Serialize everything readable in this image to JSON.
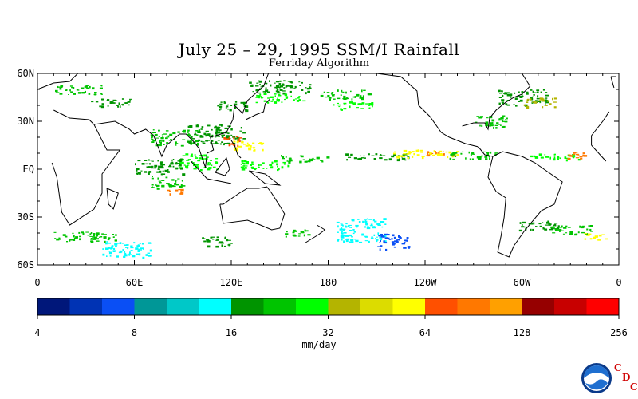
{
  "title": "July 25 – 29, 1995 SSM/I Rainfall",
  "subtitle": "Ferriday Algorithm",
  "lat_labels": [
    "60N",
    "30N",
    "EQ",
    "30S",
    "60S"
  ],
  "lon_labels": [
    "0",
    "60E",
    "120E",
    "180",
    "120W",
    "60W",
    "0"
  ],
  "colorbar": {
    "colors": [
      "#00177a",
      "#0033b4",
      "#0a4ff5",
      "#009797",
      "#00c8c8",
      "#00ffff",
      "#009400",
      "#00c400",
      "#00ff00",
      "#b4b400",
      "#dcdc00",
      "#ffff00",
      "#ff5000",
      "#ff7800",
      "#ffa000",
      "#960000",
      "#c80000",
      "#ff0000"
    ],
    "labels": [
      "4",
      "8",
      "16",
      "32",
      "64",
      "128",
      "256"
    ],
    "units": "mm/day"
  },
  "logo": {
    "agency": "NOAA",
    "cdc_letters": [
      "C",
      "D",
      "C"
    ]
  },
  "rain_bands": [
    {
      "lon": 150,
      "lat": 52,
      "w": 40,
      "h": 8,
      "color": "#009400"
    },
    {
      "lon": 150,
      "lat": 45,
      "w": 30,
      "h": 6,
      "color": "#00ff00"
    },
    {
      "lon": 25,
      "lat": 50,
      "w": 30,
      "h": 6,
      "color": "#00c400"
    },
    {
      "lon": 45,
      "lat": 42,
      "w": 25,
      "h": 5,
      "color": "#009400"
    },
    {
      "lon": -170,
      "lat": 47,
      "w": 30,
      "h": 6,
      "color": "#00c400"
    },
    {
      "lon": -165,
      "lat": 40,
      "w": 25,
      "h": 5,
      "color": "#00ff00"
    },
    {
      "lon": -60,
      "lat": 45,
      "w": 30,
      "h": 10,
      "color": "#009400"
    },
    {
      "lon": -50,
      "lat": 42,
      "w": 20,
      "h": 6,
      "color": "#b4b400"
    },
    {
      "lon": -80,
      "lat": 30,
      "w": 20,
      "h": 8,
      "color": "#00c400"
    },
    {
      "lon": 85,
      "lat": 20,
      "w": 30,
      "h": 10,
      "color": "#00c400"
    },
    {
      "lon": 110,
      "lat": 22,
      "w": 35,
      "h": 12,
      "color": "#009400"
    },
    {
      "lon": 120,
      "lat": 18,
      "w": 10,
      "h": 6,
      "color": "#ff5000"
    },
    {
      "lon": 130,
      "lat": 15,
      "w": 20,
      "h": 6,
      "color": "#ffff00"
    },
    {
      "lon": 100,
      "lat": 5,
      "w": 25,
      "h": 10,
      "color": "#00ff00"
    },
    {
      "lon": 75,
      "lat": 2,
      "w": 30,
      "h": 10,
      "color": "#009400"
    },
    {
      "lon": 80,
      "lat": -8,
      "w": 20,
      "h": 8,
      "color": "#00c400"
    },
    {
      "lon": 85,
      "lat": -14,
      "w": 10,
      "h": 4,
      "color": "#ff7800"
    },
    {
      "lon": 140,
      "lat": 3,
      "w": 30,
      "h": 6,
      "color": "#00ff00"
    },
    {
      "lon": 165,
      "lat": 7,
      "w": 30,
      "h": 4,
      "color": "#00c400"
    },
    {
      "lon": -150,
      "lat": 8,
      "w": 40,
      "h": 4,
      "color": "#009400"
    },
    {
      "lon": -120,
      "lat": 10,
      "w": 40,
      "h": 5,
      "color": "#ffff00"
    },
    {
      "lon": -110,
      "lat": 10,
      "w": 20,
      "h": 3,
      "color": "#ff7800"
    },
    {
      "lon": -90,
      "lat": 9,
      "w": 30,
      "h": 5,
      "color": "#00c400"
    },
    {
      "lon": -40,
      "lat": 8,
      "w": 30,
      "h": 4,
      "color": "#00ff00"
    },
    {
      "lon": -25,
      "lat": 9,
      "w": 15,
      "h": 4,
      "color": "#ff7800"
    },
    {
      "lon": 30,
      "lat": -42,
      "w": 40,
      "h": 6,
      "color": "#00c400"
    },
    {
      "lon": 55,
      "lat": -50,
      "w": 30,
      "h": 10,
      "color": "#00ffff"
    },
    {
      "lon": 110,
      "lat": -45,
      "w": 20,
      "h": 6,
      "color": "#009400"
    },
    {
      "lon": 160,
      "lat": -40,
      "w": 15,
      "h": 5,
      "color": "#00c400"
    },
    {
      "lon": -160,
      "lat": -38,
      "w": 30,
      "h": 15,
      "color": "#00ffff"
    },
    {
      "lon": -140,
      "lat": -45,
      "w": 20,
      "h": 10,
      "color": "#0a4ff5"
    },
    {
      "lon": -50,
      "lat": -35,
      "w": 25,
      "h": 6,
      "color": "#009400"
    },
    {
      "lon": -30,
      "lat": -38,
      "w": 25,
      "h": 6,
      "color": "#00c400"
    },
    {
      "lon": -15,
      "lat": -42,
      "w": 15,
      "h": 4,
      "color": "#ffff00"
    },
    {
      "lon": 120,
      "lat": 40,
      "w": 20,
      "h": 6,
      "color": "#009400"
    }
  ]
}
